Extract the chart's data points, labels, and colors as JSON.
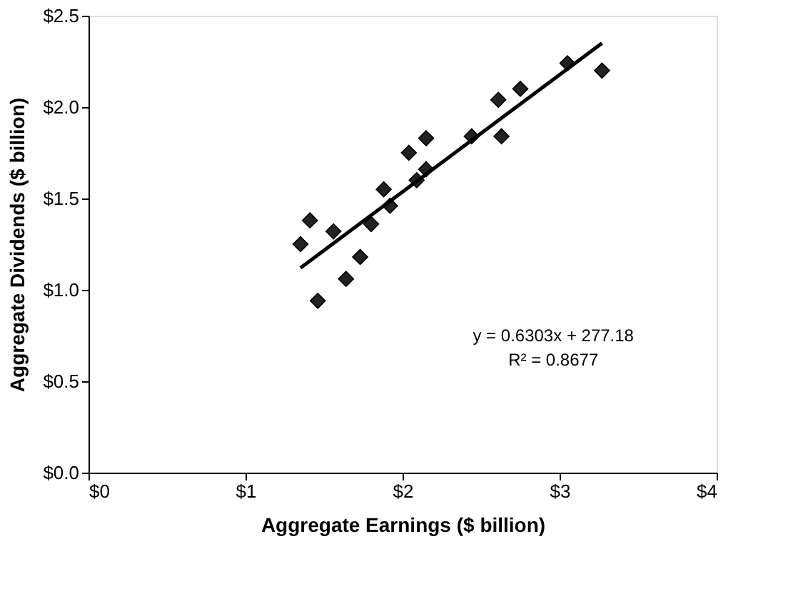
{
  "chart_data": {
    "type": "scatter",
    "xlabel": "Aggregate Earnings ($ billion)",
    "ylabel": "Aggregate Dividends ($ billion)",
    "series": [
      {
        "color": "#222222",
        "marker": "diamond",
        "x": [
          1.35,
          1.41,
          1.46,
          1.56,
          1.64,
          1.73,
          1.8,
          1.88,
          1.92,
          2.04,
          2.09,
          2.15,
          2.15,
          2.44,
          2.61,
          2.63,
          2.75,
          3.05,
          3.27
        ],
        "values": [
          1.25,
          1.38,
          0.94,
          1.32,
          1.06,
          1.18,
          1.36,
          1.55,
          1.46,
          1.75,
          1.6,
          1.83,
          1.66,
          1.84,
          2.04,
          1.84,
          2.1,
          2.24,
          2.2
        ]
      },
      {
        "type": "line",
        "color": "#000000",
        "marker": "none",
        "line_style": "solid",
        "x": [
          1.35,
          3.27
        ],
        "values": [
          1.12,
          2.35
        ]
      }
    ],
    "grid": false,
    "xlim": [
      0,
      4
    ],
    "xticks": [
      {
        "value": 0,
        "label": "$0"
      },
      {
        "value": 1,
        "label": "$1"
      },
      {
        "value": 2,
        "label": "$2"
      },
      {
        "value": 3,
        "label": "$3"
      },
      {
        "value": 4,
        "label": "$4"
      }
    ],
    "ylim": [
      0,
      2.5
    ],
    "yticks": [
      {
        "value": 0,
        "label": "$0.0"
      },
      {
        "value": 0.5,
        "label": "$0.5"
      },
      {
        "value": 1,
        "label": "$1.0"
      },
      {
        "value": 1.5,
        "label": "$1.5"
      },
      {
        "value": 2,
        "label": "$2.0"
      },
      {
        "value": 2.5,
        "label": "$2.5"
      }
    ],
    "annotations": [
      "y = 0.6303x + 277.18",
      "R² = 0.8677"
    ]
  }
}
